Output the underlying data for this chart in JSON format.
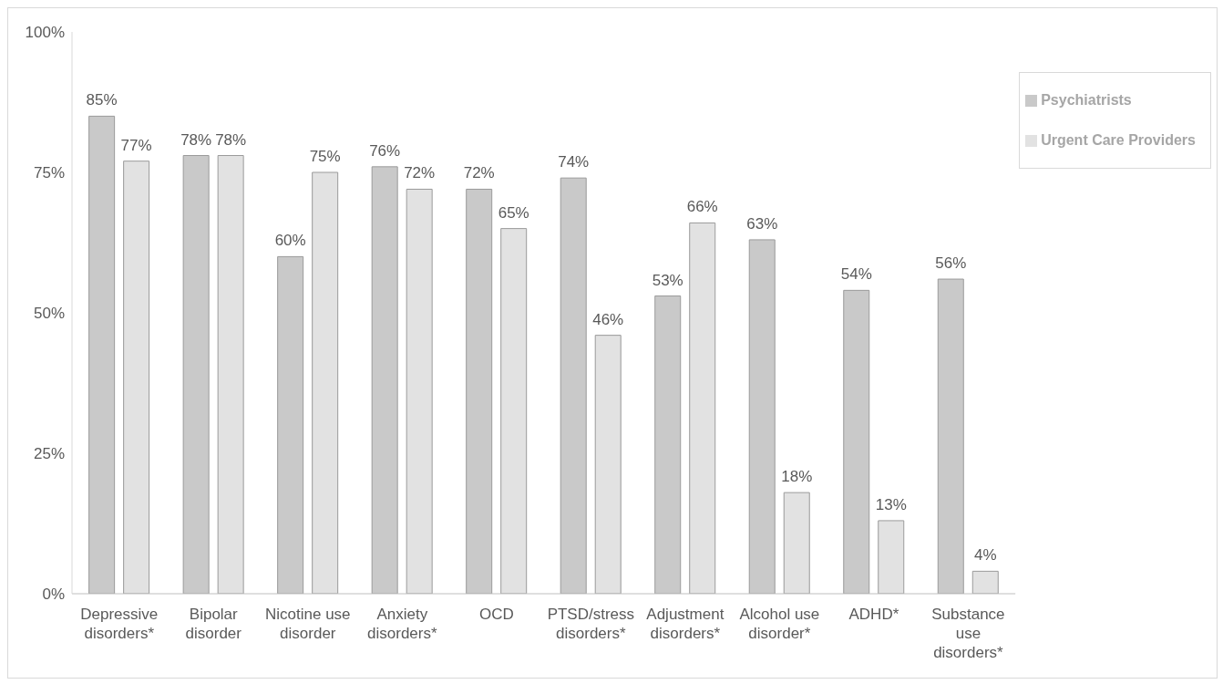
{
  "chart_data": {
    "type": "bar",
    "categories": [
      "Depressive disorders*",
      "Bipolar disorder",
      "Nicotine use disorder",
      "Anxiety disorders*",
      "OCD",
      "PTSD/stress disorders*",
      "Adjustment disorders*",
      "Alcohol use disorder*",
      "ADHD*",
      "Substance use disorders*"
    ],
    "series": [
      {
        "name": "Psychiatrists",
        "color": "#c9c9c9",
        "values": [
          85,
          78,
          60,
          76,
          72,
          74,
          53,
          63,
          54,
          56
        ],
        "value_labels": [
          "85%",
          "78%",
          "60%",
          "76%",
          "72%",
          "74%",
          "53%",
          "63%",
          "54%",
          "56%"
        ]
      },
      {
        "name": "Urgent Care Providers",
        "color": "#e2e2e2",
        "values": [
          77,
          78,
          75,
          72,
          65,
          46,
          66,
          18,
          13,
          4
        ],
        "value_labels": [
          "77%",
          "78%",
          "75%",
          "72%",
          "65%",
          "46%",
          "66%",
          "18%",
          "13%",
          "4%"
        ]
      }
    ],
    "ylim": [
      0,
      100
    ],
    "yticks": [
      {
        "value": 0,
        "label": "0%"
      },
      {
        "value": 25,
        "label": "25%"
      },
      {
        "value": 50,
        "label": "50%"
      },
      {
        "value": 75,
        "label": "75%"
      },
      {
        "value": 100,
        "label": "100%"
      }
    ],
    "grid": false,
    "legend": "top right"
  }
}
